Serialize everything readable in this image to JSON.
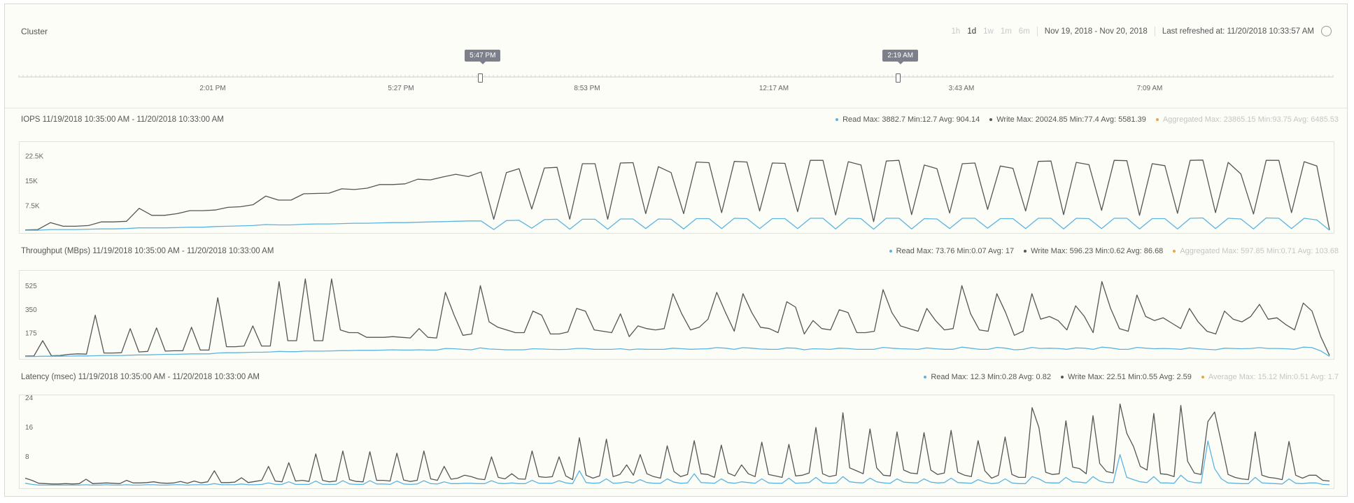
{
  "header": {
    "title": "Cluster",
    "ranges": [
      {
        "label": "1h",
        "active": false
      },
      {
        "label": "1d",
        "active": true
      },
      {
        "label": "1w",
        "active": false
      },
      {
        "label": "1m",
        "active": false
      },
      {
        "label": "6m",
        "active": false
      }
    ],
    "date_range": "Nov 19, 2018 - Nov 20, 2018",
    "last_refreshed": "Last refreshed at: 11/20/2018 10:33:57 AM"
  },
  "timeline": {
    "tick_labels": [
      "2:01 PM",
      "5:27 PM",
      "8:53 PM",
      "12:17 AM",
      "3:43 AM",
      "7:09 AM"
    ],
    "handle_start": "5:47 PM",
    "handle_end": "2:19 AM",
    "handle_start_fraction": 0.351,
    "handle_end_fraction": 0.669
  },
  "colors": {
    "read": "#5ab4e0",
    "write": "#555555",
    "aggregated": "#e8a54a"
  },
  "chart_data": [
    {
      "type": "line",
      "title": "IOPS 11/19/2018 10:35:00 AM - 11/20/2018 10:33:00 AM",
      "yticks": [
        "7.5K",
        "15K",
        "22.5K"
      ],
      "ytick_values": [
        7500,
        15000,
        22500
      ],
      "ylim": [
        0,
        26000
      ],
      "legend": [
        {
          "text": "Read Max: 3882.7 Min:12.7 Avg: 904.14",
          "color": "#5ab4e0"
        },
        {
          "text": "Write Max: 20024.85 Min:77.4 Avg: 5581.39",
          "color": "#555555"
        },
        {
          "text": "Aggregated Max: 23865.15 Min:93.75 Avg: 6485.53",
          "color": "#e8a54a",
          "faded": true
        }
      ],
      "series": [
        {
          "name": "Write",
          "color": "#555555",
          "values": [
            300,
            400,
            2500,
            1400,
            1400,
            1600,
            2700,
            2700,
            2900,
            6800,
            4700,
            4700,
            5200,
            6100,
            6100,
            6300,
            7100,
            7300,
            7900,
            10500,
            9300,
            9300,
            11200,
            11300,
            11400,
            12700,
            12500,
            12900,
            14000,
            14000,
            14200,
            15600,
            15400,
            16300,
            17100,
            16400,
            17800,
            3500,
            17600,
            18800,
            6600,
            19000,
            19200,
            3500,
            20300,
            20300,
            3500,
            20500,
            20600,
            5200,
            19400,
            17600,
            5200,
            20800,
            20600,
            5500,
            21000,
            20800,
            6000,
            20500,
            20400,
            5800,
            21300,
            21300,
            4800,
            20900,
            19900,
            2800,
            21100,
            21300,
            4900,
            19900,
            18800,
            5400,
            20300,
            20500,
            6500,
            19600,
            18900,
            6000,
            21000,
            21100,
            4900,
            20700,
            20000,
            6200,
            21300,
            21200,
            4700,
            20300,
            19700,
            5300,
            21300,
            21400,
            5500,
            20700,
            17200,
            5100,
            21300,
            21300,
            5500,
            20900,
            19600,
            300
          ]
        },
        {
          "name": "Read",
          "color": "#5ab4e0",
          "values": [
            200,
            200,
            400,
            400,
            400,
            500,
            600,
            600,
            700,
            900,
            900,
            900,
            1000,
            1100,
            1100,
            1300,
            1400,
            1500,
            1600,
            1900,
            1800,
            1800,
            2000,
            2100,
            2100,
            2200,
            2300,
            2300,
            2400,
            2500,
            2500,
            2600,
            2700,
            2800,
            2900,
            3000,
            3000,
            400,
            3100,
            3200,
            800,
            3400,
            3500,
            500,
            3500,
            3500,
            500,
            3600,
            3600,
            700,
            3600,
            3500,
            600,
            3700,
            3700,
            700,
            3800,
            3700,
            700,
            3700,
            3700,
            700,
            3800,
            3800,
            600,
            3800,
            3700,
            500,
            3800,
            3800,
            600,
            3700,
            3600,
            700,
            3800,
            3800,
            800,
            3700,
            3700,
            700,
            3800,
            3800,
            600,
            3800,
            3700,
            700,
            3800,
            3800,
            600,
            3700,
            3700,
            600,
            3800,
            3900,
            700,
            3800,
            3600,
            600,
            3900,
            3800,
            700,
            3800,
            3300,
            200
          ]
        }
      ]
    },
    {
      "type": "line",
      "title": "Throughput (MBps) 11/19/2018 10:35:00 AM - 11/20/2018 10:33:00 AM",
      "yticks": [
        "175",
        "350",
        "525"
      ],
      "ytick_values": [
        175,
        350,
        525
      ],
      "ylim": [
        0,
        620
      ],
      "legend": [
        {
          "text": "Read Max: 73.76 Min:0.07 Avg: 17",
          "color": "#5ab4e0"
        },
        {
          "text": "Write Max: 596.23 Min:0.62 Avg: 86.68",
          "color": "#555555"
        },
        {
          "text": "Aggregated Max: 597.85 Min:0.71 Avg: 103.68",
          "color": "#e8a54a",
          "faded": true
        }
      ],
      "series": [
        {
          "name": "Write",
          "color": "#555555",
          "values": [
            5,
            6,
            120,
            8,
            10,
            18,
            22,
            20,
            310,
            28,
            28,
            30,
            210,
            36,
            40,
            215,
            42,
            45,
            45,
            220,
            50,
            50,
            440,
            75,
            75,
            80,
            230,
            80,
            80,
            560,
            120,
            120,
            580,
            120,
            120,
            580,
            200,
            180,
            180,
            145,
            145,
            145,
            150,
            145,
            140,
            210,
            145,
            140,
            480,
            310,
            160,
            170,
            530,
            260,
            220,
            200,
            180,
            180,
            340,
            310,
            170,
            170,
            185,
            360,
            340,
            200,
            190,
            180,
            320,
            150,
            230,
            210,
            200,
            210,
            470,
            320,
            200,
            220,
            280,
            480,
            330,
            190,
            470,
            330,
            220,
            210,
            180,
            410,
            370,
            170,
            270,
            210,
            200,
            350,
            330,
            180,
            180,
            190,
            500,
            330,
            230,
            210,
            190,
            360,
            270,
            200,
            210,
            530,
            320,
            200,
            190,
            470,
            330,
            160,
            190,
            470,
            280,
            300,
            270,
            200,
            380,
            300,
            180,
            560,
            360,
            210,
            190,
            460,
            300,
            270,
            290,
            250,
            210,
            360,
            260,
            190,
            170,
            340,
            280,
            260,
            300,
            390,
            280,
            290,
            240,
            200,
            400,
            340,
            150,
            10
          ]
        },
        {
          "name": "Read",
          "color": "#5ab4e0",
          "values": [
            2,
            2,
            4,
            4,
            4,
            5,
            6,
            6,
            8,
            10,
            10,
            10,
            12,
            14,
            14,
            16,
            18,
            18,
            20,
            22,
            22,
            22,
            28,
            30,
            30,
            32,
            34,
            34,
            36,
            40,
            38,
            38,
            42,
            42,
            42,
            44,
            46,
            46,
            48,
            48,
            48,
            50,
            52,
            50,
            50,
            52,
            50,
            50,
            62,
            60,
            55,
            52,
            66,
            58,
            55,
            52,
            52,
            52,
            60,
            58,
            55,
            54,
            55,
            62,
            62,
            56,
            55,
            55,
            60,
            52,
            58,
            56,
            55,
            56,
            64,
            60,
            56,
            58,
            60,
            68,
            64,
            55,
            68,
            64,
            58,
            56,
            55,
            66,
            64,
            52,
            60,
            58,
            55,
            64,
            62,
            55,
            55,
            56,
            70,
            64,
            60,
            58,
            55,
            66,
            60,
            56,
            56,
            72,
            64,
            56,
            55,
            70,
            64,
            52,
            55,
            70,
            62,
            64,
            62,
            56,
            66,
            64,
            55,
            72,
            66,
            56,
            55,
            70,
            64,
            60,
            62,
            60,
            56,
            66,
            60,
            55,
            52,
            64,
            62,
            60,
            62,
            68,
            62,
            62,
            60,
            56,
            72,
            68,
            44,
            3
          ]
        }
      ]
    },
    {
      "type": "line",
      "title": "Latency (msec) 11/19/2018 10:35:00 AM - 11/20/2018 10:33:00 AM",
      "yticks": [
        "8",
        "16",
        "24"
      ],
      "ytick_values": [
        8,
        16,
        24
      ],
      "ylim": [
        0,
        24
      ],
      "legend": [
        {
          "text": "Read Max: 12.3 Min:0.28 Avg: 0.82",
          "color": "#5ab4e0"
        },
        {
          "text": "Write Max: 22.51 Min:0.55 Avg: 2.59",
          "color": "#555555"
        },
        {
          "text": "Average Max: 15.12 Min:0.51 Avg: 1.7",
          "color": "#e8a54a",
          "faded": true
        }
      ],
      "series": [
        {
          "name": "Write",
          "color": "#555555",
          "values": [
            2.2,
            1.6,
            0.8,
            0.7,
            0.6,
            0.6,
            0.7,
            0.6,
            0.7,
            1.9,
            0.7,
            0.8,
            0.9,
            0.8,
            0.7,
            1.6,
            0.9,
            0.9,
            1.0,
            1.2,
            0.9,
            0.8,
            0.9,
            1.3,
            0.8,
            1.4,
            0.9,
            1.2,
            4.2,
            1.0,
            1.0,
            1.1,
            2.3,
            1.0,
            1.3,
            1.6,
            5.4,
            1.4,
            1.2,
            6.4,
            1.4,
            1.6,
            1.3,
            8.8,
            1.6,
            1.2,
            1.4,
            9.6,
            1.8,
            1.3,
            1.2,
            9.4,
            1.6,
            1.6,
            1.4,
            9.0,
            1.7,
            1.3,
            1.6,
            9.6,
            2.0,
            1.6,
            5.4,
            1.9,
            2.2,
            3.0,
            2.6,
            2.0,
            1.8,
            8.0,
            2.4,
            2.0,
            3.4,
            2.0,
            1.9,
            9.6,
            2.6,
            2.4,
            2.6,
            8.0,
            2.8,
            1.8,
            13.2,
            3.0,
            2.2,
            2.8,
            12.8,
            2.6,
            3.2,
            5.8,
            3.0,
            8.6,
            3.4,
            2.6,
            2.2,
            11.0,
            4.0,
            2.6,
            3.2,
            12.4,
            3.4,
            3.2,
            2.4,
            11.2,
            3.6,
            2.8,
            5.8,
            3.4,
            2.6,
            12.0,
            3.2,
            2.8,
            2.4,
            11.4,
            2.8,
            3.0,
            3.6,
            16.0,
            3.4,
            2.6,
            3.0,
            20.0,
            5.0,
            4.2,
            3.4,
            15.6,
            5.0,
            3.0,
            2.8,
            14.8,
            4.4,
            3.6,
            3.4,
            14.6,
            4.4,
            3.2,
            3.6,
            15.2,
            3.8,
            3.0,
            2.6,
            12.4,
            4.2,
            2.2,
            3.0,
            13.4,
            3.2,
            2.4,
            2.4,
            21.4,
            16.0,
            3.8,
            3.2,
            3.4,
            17.8,
            5.2,
            4.8,
            3.4,
            19.2,
            6.2,
            4.0,
            3.6,
            22.4,
            14.4,
            10.8,
            5.4,
            4.4,
            19.8,
            3.4,
            3.2,
            2.6,
            22.0,
            6.8,
            3.6,
            3.2,
            17.6,
            20.2,
            11.8,
            3.2,
            2.4,
            2.0,
            1.8,
            14.8,
            3.0,
            2.4,
            2.2,
            1.8,
            12.2,
            3.0,
            2.2,
            3.0,
            3.0,
            1.6,
            1.4
          ]
        },
        {
          "name": "Read",
          "color": "#5ab4e0",
          "values": [
            0.8,
            0.5,
            0.3,
            0.3,
            0.3,
            0.3,
            0.3,
            0.3,
            0.3,
            0.4,
            0.3,
            0.3,
            0.4,
            0.3,
            0.3,
            0.4,
            0.3,
            0.3,
            0.4,
            0.4,
            0.3,
            0.3,
            0.4,
            0.4,
            0.3,
            0.4,
            0.4,
            0.4,
            0.7,
            0.4,
            0.4,
            0.4,
            0.6,
            0.4,
            0.4,
            0.5,
            0.9,
            0.5,
            0.5,
            1.2,
            0.5,
            0.5,
            0.5,
            1.4,
            0.5,
            0.5,
            0.5,
            1.5,
            0.6,
            0.5,
            0.5,
            1.5,
            0.6,
            0.6,
            0.5,
            1.4,
            0.6,
            0.5,
            0.6,
            1.5,
            0.7,
            0.6,
            1.2,
            0.7,
            0.7,
            0.8,
            0.8,
            0.7,
            0.7,
            1.5,
            0.8,
            0.7,
            0.9,
            0.7,
            0.7,
            1.6,
            0.8,
            0.8,
            0.8,
            1.5,
            0.9,
            0.7,
            4.2,
            1.0,
            0.8,
            0.9,
            2.0,
            0.8,
            0.9,
            1.2,
            0.9,
            1.8,
            1.0,
            0.8,
            0.8,
            2.0,
            1.1,
            0.8,
            0.9,
            3.4,
            1.0,
            0.9,
            0.8,
            2.0,
            1.0,
            0.8,
            1.2,
            1.0,
            0.8,
            2.0,
            0.9,
            0.8,
            0.8,
            2.2,
            0.8,
            0.9,
            1.0,
            2.4,
            1.0,
            0.8,
            0.9,
            2.6,
            1.2,
            1.0,
            0.9,
            2.2,
            1.2,
            0.9,
            0.8,
            2.0,
            1.1,
            1.0,
            0.9,
            2.0,
            1.1,
            0.9,
            1.0,
            2.2,
            1.0,
            0.9,
            0.8,
            1.8,
            1.1,
            0.7,
            0.9,
            2.0,
            0.9,
            0.7,
            0.7,
            2.6,
            2.0,
            1.0,
            0.9,
            0.9,
            2.4,
            1.2,
            1.1,
            0.9,
            2.6,
            1.4,
            1.0,
            1.0,
            8.6,
            2.4,
            1.8,
            1.2,
            1.0,
            2.6,
            0.9,
            0.9,
            0.8,
            3.0,
            1.4,
            1.0,
            0.9,
            12.3,
            4.8,
            2.0,
            0.9,
            0.8,
            0.7,
            0.7,
            2.4,
            0.9,
            0.8,
            0.7,
            0.6,
            2.0,
            0.8,
            0.7,
            0.9,
            0.9,
            0.5,
            0.4
          ]
        }
      ]
    }
  ]
}
